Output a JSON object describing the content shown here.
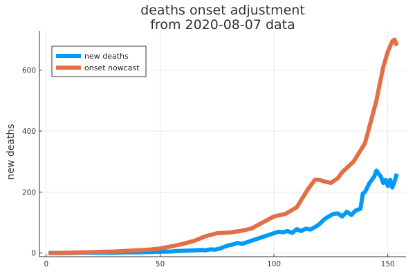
{
  "chart_data": {
    "type": "line",
    "title": "deaths onset adjustment",
    "subtitle": "from 2020-08-07 data",
    "xlabel": "",
    "ylabel": "new deaths",
    "xlim": [
      -3,
      158
    ],
    "ylim": [
      -12,
      728
    ],
    "xticks": [
      0,
      50,
      100,
      150
    ],
    "yticks": [
      0,
      200,
      400,
      600
    ],
    "grid": true,
    "legend_position": "top-left",
    "series": [
      {
        "name": "new deaths",
        "color": "#009AF9",
        "x": [
          1,
          5,
          10,
          15,
          20,
          25,
          30,
          35,
          40,
          45,
          50,
          55,
          58,
          62,
          65,
          68,
          70,
          72,
          74,
          76,
          78,
          80,
          82,
          84,
          86,
          88,
          90,
          92,
          94,
          96,
          98,
          100,
          102,
          104,
          106,
          108,
          110,
          112,
          114,
          116,
          118,
          120,
          122,
          124,
          126,
          128,
          130,
          132,
          134,
          136,
          138,
          139,
          140,
          141,
          142,
          143,
          144,
          145,
          146,
          147,
          148,
          149,
          150,
          151,
          152,
          153,
          154
        ],
        "y": [
          0,
          0,
          0,
          1,
          1,
          1,
          1,
          2,
          2,
          3,
          4,
          5,
          7,
          8,
          9,
          10,
          9,
          12,
          11,
          14,
          20,
          25,
          28,
          33,
          30,
          35,
          40,
          45,
          50,
          55,
          60,
          65,
          70,
          68,
          72,
          66,
          78,
          72,
          80,
          77,
          85,
          95,
          110,
          120,
          128,
          130,
          120,
          135,
          125,
          140,
          145,
          195,
          200,
          215,
          230,
          240,
          250,
          270,
          260,
          250,
          230,
          240,
          220,
          240,
          215,
          235,
          260
        ]
      },
      {
        "name": "onset nowcast",
        "color": "#E26F46",
        "x": [
          1,
          5,
          10,
          15,
          20,
          25,
          30,
          35,
          40,
          45,
          50,
          55,
          60,
          65,
          70,
          75,
          80,
          85,
          90,
          95,
          100,
          105,
          110,
          115,
          118,
          120,
          122,
          125,
          128,
          130,
          135,
          140,
          145,
          148,
          150,
          152,
          153,
          154
        ],
        "y": [
          0,
          0,
          1,
          2,
          3,
          4,
          5,
          7,
          9,
          11,
          15,
          22,
          30,
          40,
          55,
          65,
          67,
          72,
          80,
          100,
          120,
          128,
          150,
          210,
          240,
          240,
          235,
          230,
          245,
          265,
          300,
          360,
          500,
          610,
          660,
          695,
          700,
          680
        ]
      }
    ]
  }
}
